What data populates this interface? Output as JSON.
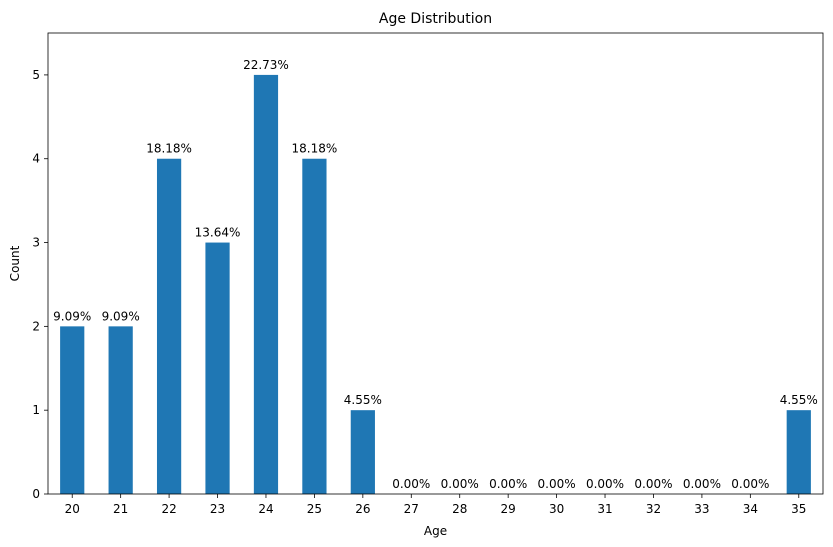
{
  "chart_data": {
    "type": "bar",
    "title": "Age Distribution",
    "xlabel": "Age",
    "ylabel": "Count",
    "categories": [
      "20",
      "21",
      "22",
      "23",
      "24",
      "25",
      "26",
      "27",
      "28",
      "29",
      "30",
      "31",
      "32",
      "33",
      "34",
      "35"
    ],
    "values": [
      2,
      2,
      4,
      3,
      5,
      4,
      1,
      0,
      0,
      0,
      0,
      0,
      0,
      0,
      0,
      1
    ],
    "data_labels": [
      "9.09%",
      "9.09%",
      "18.18%",
      "13.64%",
      "22.73%",
      "18.18%",
      "4.55%",
      "0.00%",
      "0.00%",
      "0.00%",
      "0.00%",
      "0.00%",
      "0.00%",
      "0.00%",
      "0.00%",
      "4.55%"
    ],
    "ylim": [
      0,
      5.5
    ],
    "yticks": [
      0,
      1,
      2,
      3,
      4,
      5
    ],
    "grid": false,
    "bar_color": "#1f77b4"
  }
}
